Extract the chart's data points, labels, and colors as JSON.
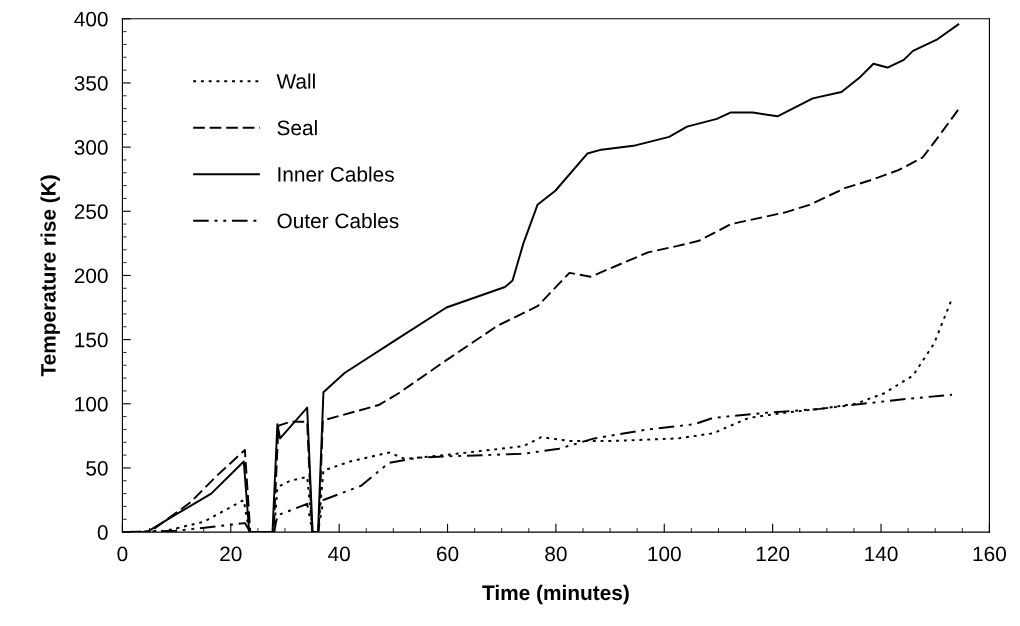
{
  "chart_data": {
    "type": "line",
    "xlabel": "Time (minutes)",
    "ylabel": "Temperature rise (K)",
    "xlim": [
      0,
      160
    ],
    "xticks": [
      0,
      20,
      40,
      60,
      80,
      100,
      120,
      140,
      160
    ],
    "ylim": [
      0,
      400
    ],
    "yticks": [
      0,
      50,
      100,
      150,
      200,
      250,
      300,
      350,
      400
    ],
    "grid": false,
    "legend": "top left",
    "series": [
      {
        "name": "Wall",
        "color": "#000000",
        "line_style": "dotted",
        "x": [
          0,
          8,
          15,
          22.4,
          23.4,
          28,
          28.6,
          31,
          34.1,
          35.1,
          36.1,
          37.1,
          42,
          49.2,
          52.2,
          59.5,
          74,
          77.3,
          82.5,
          90.4,
          102.5,
          109,
          115.6,
          122.2,
          128.7,
          135.3,
          140.5,
          145.9,
          149.8,
          153.1
        ],
        "values": [
          0,
          1,
          8,
          25,
          0,
          0,
          35,
          40,
          43,
          0,
          0,
          48,
          55,
          62,
          57,
          60,
          67,
          74,
          71,
          71,
          73,
          77,
          89,
          93,
          96,
          100,
          108,
          122,
          147,
          182
        ]
      },
      {
        "name": "Seal",
        "color": "#000000",
        "line_style": "dashed",
        "x": [
          0,
          5,
          12.5,
          17.7,
          22.6,
          23.6,
          27.9,
          28.8,
          31,
          34.1,
          35,
          36.2,
          37,
          47.3,
          50.9,
          59.8,
          69.3,
          76.6,
          82.5,
          86.4,
          97,
          102.5,
          106.4,
          112.3,
          122.2,
          126.8,
          133.3,
          137.9,
          143.2,
          147.7,
          150.4,
          154.4
        ],
        "values": [
          0,
          0,
          23,
          45,
          64,
          0,
          0,
          83,
          86,
          86,
          0,
          0,
          87,
          99,
          108,
          134,
          161,
          176,
          202,
          199,
          218,
          223,
          227,
          240,
          249,
          255,
          268,
          274,
          282,
          292,
          307,
          330
        ]
      },
      {
        "name": "Inner Cables",
        "color": "#000000",
        "line_style": "solid",
        "x": [
          0,
          4.5,
          9.2,
          16.4,
          22.4,
          23.4,
          27.7,
          28.6,
          29.1,
          34.1,
          35.1,
          36.1,
          37.1,
          41,
          50.9,
          59.8,
          70.6,
          72,
          74,
          76.6,
          79.9,
          85.8,
          88.4,
          94.3,
          100.9,
          104.2,
          109.7,
          112.3,
          116.3,
          120.9,
          127.4,
          132.7,
          136,
          138.6,
          141.2,
          144.2,
          145.9,
          150.4,
          154.4
        ],
        "values": [
          0,
          0,
          12,
          30,
          55,
          0,
          0,
          84,
          73,
          97,
          0,
          0,
          109,
          124,
          151,
          175,
          191,
          196,
          225,
          255,
          266,
          295,
          298,
          301,
          308,
          316,
          322,
          327,
          327,
          324,
          338,
          343,
          354,
          365,
          362,
          368,
          375,
          384,
          396
        ]
      },
      {
        "name": "Outer Cables",
        "color": "#000000",
        "line_style": "dashdot",
        "x": [
          0,
          10,
          22.6,
          23.6,
          28,
          28.6,
          34.1,
          35.1,
          36.1,
          37.1,
          44,
          49.2,
          54.6,
          59.5,
          74,
          80.6,
          87.1,
          97,
          105.5,
          109,
          118.9,
          128.7,
          136.6,
          145.2,
          153.1
        ],
        "values": [
          0,
          1,
          7,
          0,
          0,
          13,
          22,
          0,
          0,
          25,
          36,
          54,
          58,
          59,
          61,
          65,
          73,
          80,
          84,
          89,
          93,
          96,
          100,
          104,
          107
        ]
      }
    ]
  }
}
